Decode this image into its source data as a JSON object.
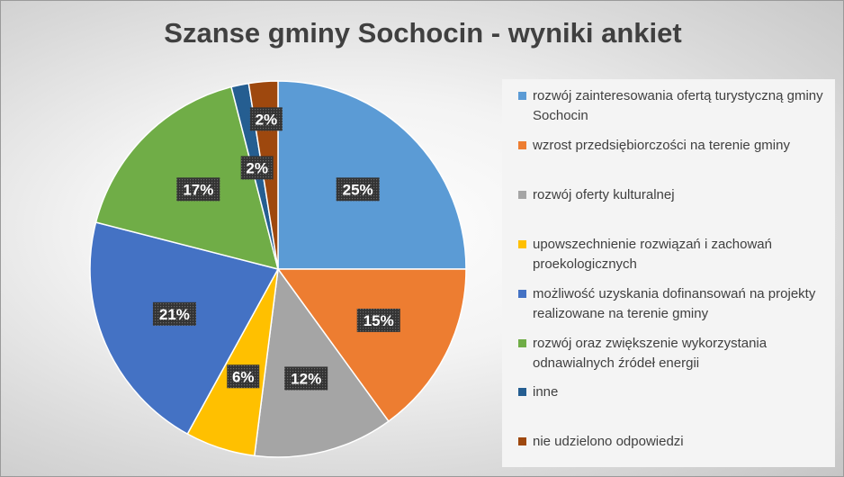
{
  "chart_data": {
    "type": "pie",
    "title": "Szanse gminy Sochocin - wyniki ankiet",
    "slices": [
      {
        "label": "rozwój zainteresowania ofertą turystyczną gminy Sochocin",
        "value": 25,
        "display": "25%",
        "color": "#5B9BD5"
      },
      {
        "label": "wzrost przedsiębiorczości na terenie gminy",
        "value": 15,
        "display": "15%",
        "color": "#ED7D31"
      },
      {
        "label": "rozwój oferty kulturalnej",
        "value": 12,
        "display": "12%",
        "color": "#A5A5A5"
      },
      {
        "label": "upowszechnienie rozwiązań i zachowań proekologicznych",
        "value": 6,
        "display": "6%",
        "color": "#FFC000"
      },
      {
        "label": "możliwość uzyskania dofinansowań na projekty realizowane na terenie gminy",
        "value": 21,
        "display": "21%",
        "color": "#4472C4"
      },
      {
        "label": "rozwój oraz zwiększenie wykorzystania odnawialnych źródeł energii",
        "value": 17,
        "display": "17%",
        "color": "#70AD47"
      },
      {
        "label": "inne",
        "value": 1.5,
        "display": "2%",
        "color": "#255E91"
      },
      {
        "label": "nie udzielono odpowiedzi",
        "value": 2.5,
        "display": "2%",
        "color": "#9E480E"
      }
    ],
    "legend_position": "right"
  }
}
